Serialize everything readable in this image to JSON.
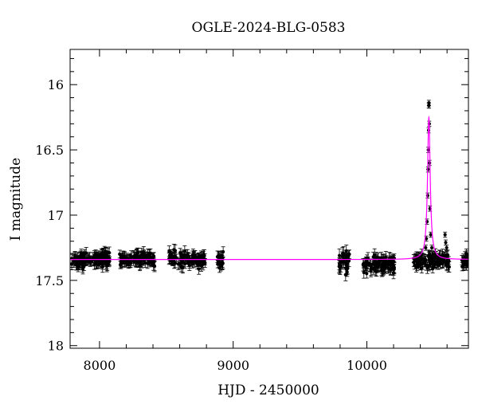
{
  "chart_data": {
    "type": "scatter",
    "title": "OGLE-2024-BLG-0583",
    "xlabel": "HJD - 2450000",
    "ylabel": "I magnitude",
    "xlim": [
      7780,
      10760
    ],
    "ylim": [
      18.02,
      15.73
    ],
    "y_inverted": true,
    "grid": false,
    "x_ticks": [
      "8000",
      "9000",
      "10000"
    ],
    "x_tick_values": [
      8000,
      9000,
      10000
    ],
    "y_ticks": [
      "16",
      "16.5",
      "17",
      "17.5",
      "18"
    ],
    "y_tick_values": [
      16,
      16.5,
      17,
      17.5,
      18
    ],
    "colors": {
      "points": "#000000",
      "model": "#ff00ff"
    },
    "series": [
      {
        "kind": "photometry",
        "marker": "filled-circle-with-errorbars",
        "segments": [
          {
            "x_start": 7790,
            "x_end": 8080,
            "y_mean": 17.34,
            "scatter": 0.03,
            "error": 0.035
          },
          {
            "x_start": 8150,
            "x_end": 8420,
            "y_mean": 17.34,
            "scatter": 0.025,
            "error": 0.035
          },
          {
            "x_start": 8520,
            "x_end": 8790,
            "y_mean": 17.34,
            "scatter": 0.03,
            "error": 0.035
          },
          {
            "x_start": 8880,
            "x_end": 8930,
            "y_mean": 17.35,
            "scatter": 0.03,
            "error": 0.035
          },
          {
            "x_start": 9790,
            "x_end": 9870,
            "y_mean": 17.36,
            "scatter": 0.04,
            "error": 0.04
          },
          {
            "x_start": 9970,
            "x_end": 10210,
            "y_mean": 17.37,
            "scatter": 0.035,
            "error": 0.04
          },
          {
            "x_start": 10350,
            "x_end": 10620,
            "y_mean": 17.35,
            "scatter": 0.025,
            "error": 0.035
          },
          {
            "x_start": 10710,
            "x_end": 10760,
            "y_mean": 17.35,
            "scatter": 0.025,
            "error": 0.035
          }
        ],
        "peak_points": [
          {
            "x": 10440,
            "y": 17.25
          },
          {
            "x": 10445,
            "y": 17.18
          },
          {
            "x": 10450,
            "y": 17.05
          },
          {
            "x": 10455,
            "y": 16.85
          },
          {
            "x": 10458,
            "y": 16.65
          },
          {
            "x": 10460,
            "y": 16.5
          },
          {
            "x": 10462,
            "y": 16.35
          },
          {
            "x": 10463,
            "y": 16.16
          },
          {
            "x": 10464,
            "y": 16.14
          },
          {
            "x": 10465,
            "y": 16.16
          },
          {
            "x": 10467,
            "y": 16.3
          },
          {
            "x": 10469,
            "y": 16.6
          },
          {
            "x": 10472,
            "y": 16.95
          },
          {
            "x": 10478,
            "y": 17.15
          },
          {
            "x": 10486,
            "y": 17.25
          },
          {
            "x": 10495,
            "y": 17.3
          },
          {
            "x": 10585,
            "y": 17.15
          },
          {
            "x": 10590,
            "y": 17.21
          },
          {
            "x": 10597,
            "y": 17.25
          }
        ]
      },
      {
        "kind": "model",
        "baseline": 17.34,
        "peak_x": 10464,
        "peak_y": 16.25,
        "width": 12
      }
    ]
  }
}
